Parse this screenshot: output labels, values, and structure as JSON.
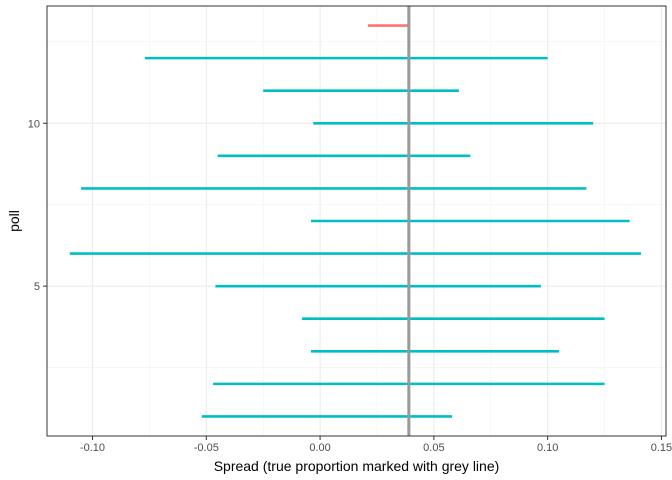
{
  "chart_data": {
    "type": "interval",
    "xlabel": "Spread (true proportion marked with grey line)",
    "ylabel": "poll",
    "xlim": [
      -0.12,
      0.152
    ],
    "ylim": [
      0.4,
      13.6
    ],
    "x_ticks": [
      -0.1,
      -0.05,
      0.0,
      0.05,
      0.1,
      0.15
    ],
    "x_tick_labels": [
      "-0.10",
      "-0.05",
      "0.00",
      "0.05",
      "0.10",
      "0.15"
    ],
    "y_ticks": [
      5,
      10
    ],
    "y_tick_labels": [
      "5",
      "10"
    ],
    "grid": true,
    "true_value": 0.039,
    "reference_line_color": "#999999",
    "colors": {
      "covered": "#00BFC4",
      "missed": "#F8766D"
    },
    "intervals": [
      {
        "poll": 1,
        "lower": -0.052,
        "upper": 0.058,
        "covers": true
      },
      {
        "poll": 2,
        "lower": -0.047,
        "upper": 0.125,
        "covers": true
      },
      {
        "poll": 3,
        "lower": -0.004,
        "upper": 0.105,
        "covers": true
      },
      {
        "poll": 4,
        "lower": -0.008,
        "upper": 0.125,
        "covers": true
      },
      {
        "poll": 5,
        "lower": -0.046,
        "upper": 0.097,
        "covers": true
      },
      {
        "poll": 6,
        "lower": -0.11,
        "upper": 0.141,
        "covers": true
      },
      {
        "poll": 7,
        "lower": -0.004,
        "upper": 0.136,
        "covers": true
      },
      {
        "poll": 8,
        "lower": -0.105,
        "upper": 0.117,
        "covers": true
      },
      {
        "poll": 9,
        "lower": -0.045,
        "upper": 0.066,
        "covers": true
      },
      {
        "poll": 10,
        "lower": -0.003,
        "upper": 0.12,
        "covers": true
      },
      {
        "poll": 11,
        "lower": -0.025,
        "upper": 0.061,
        "covers": true
      },
      {
        "poll": 12,
        "lower": -0.077,
        "upper": 0.1,
        "covers": true
      },
      {
        "poll": 13,
        "lower": 0.021,
        "upper": 0.039,
        "covers": false
      }
    ]
  }
}
